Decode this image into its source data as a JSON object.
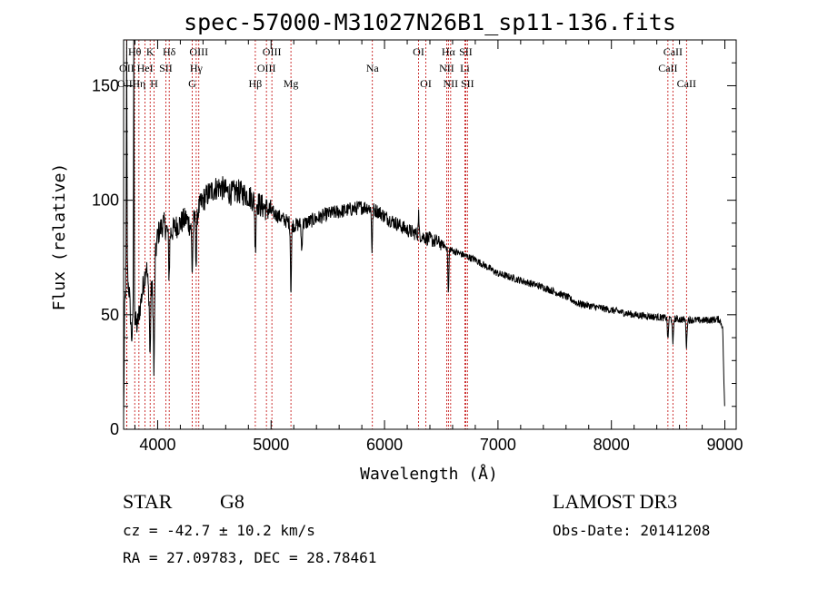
{
  "chart_data": {
    "type": "line",
    "title": "spec-57000-M31027N26B1_sp11-136.fits",
    "xlabel": "Wavelength (Å)",
    "ylabel": "Flux (relative)",
    "xlim": [
      3700,
      9100
    ],
    "ylim": [
      0,
      170
    ],
    "x_ticks": [
      4000,
      5000,
      6000,
      7000,
      8000,
      9000
    ],
    "y_ticks": [
      0,
      50,
      100,
      150
    ],
    "series": [
      {
        "name": "spectrum",
        "continuum": [
          [
            3700,
            5
          ],
          [
            3710,
            55
          ],
          [
            3730,
            68
          ],
          [
            3750,
            60
          ],
          [
            3770,
            40
          ],
          [
            3790,
            48
          ],
          [
            3820,
            45
          ],
          [
            3850,
            55
          ],
          [
            3880,
            65
          ],
          [
            3900,
            72
          ],
          [
            3920,
            60
          ],
          [
            3950,
            62
          ],
          [
            3968,
            48
          ],
          [
            3980,
            75
          ],
          [
            4000,
            85
          ],
          [
            4050,
            90
          ],
          [
            4100,
            85
          ],
          [
            4150,
            88
          ],
          [
            4200,
            90
          ],
          [
            4250,
            92
          ],
          [
            4300,
            88
          ],
          [
            4350,
            95
          ],
          [
            4400,
            100
          ],
          [
            4450,
            103
          ],
          [
            4500,
            105
          ],
          [
            4550,
            106
          ],
          [
            4600,
            104
          ],
          [
            4650,
            103
          ],
          [
            4700,
            104
          ],
          [
            4750,
            103
          ],
          [
            4800,
            102
          ],
          [
            4900,
            98
          ],
          [
            5000,
            95
          ],
          [
            5100,
            92
          ],
          [
            5200,
            89
          ],
          [
            5300,
            90
          ],
          [
            5400,
            92
          ],
          [
            5500,
            94
          ],
          [
            5600,
            95
          ],
          [
            5700,
            96
          ],
          [
            5800,
            97
          ],
          [
            5850,
            97
          ],
          [
            5900,
            96
          ],
          [
            5950,
            95
          ],
          [
            6000,
            93
          ],
          [
            6100,
            90
          ],
          [
            6200,
            87
          ],
          [
            6300,
            85
          ],
          [
            6400,
            83
          ],
          [
            6500,
            81
          ],
          [
            6600,
            78
          ],
          [
            6700,
            76
          ],
          [
            6800,
            74
          ],
          [
            6900,
            71
          ],
          [
            7000,
            68
          ],
          [
            7200,
            65
          ],
          [
            7400,
            62
          ],
          [
            7600,
            58
          ],
          [
            7700,
            55
          ],
          [
            7800,
            54
          ],
          [
            8000,
            52
          ],
          [
            8200,
            50
          ],
          [
            8400,
            49
          ],
          [
            8600,
            48
          ],
          [
            8800,
            47.5
          ],
          [
            8950,
            48
          ],
          [
            8980,
            45
          ],
          [
            9000,
            5
          ]
        ],
        "absorption_dips": [
          [
            3933,
            30
          ],
          [
            3968,
            25
          ],
          [
            4101,
            18
          ],
          [
            4305,
            20
          ],
          [
            4340,
            22
          ],
          [
            4861,
            22
          ],
          [
            5175,
            30
          ],
          [
            5270,
            12
          ],
          [
            5890,
            18
          ],
          [
            6563,
            20
          ],
          [
            8498,
            10
          ],
          [
            8542,
            12
          ],
          [
            8662,
            12
          ]
        ],
        "emission_spikes": [
          [
            3727,
            100
          ],
          [
            3790,
            120
          ],
          [
            6300,
            10
          ]
        ]
      }
    ],
    "spectral_lines": [
      {
        "label": "Hθ",
        "wavelength": 3798,
        "row": 0
      },
      {
        "label": "OII",
        "wavelength": 3727,
        "row": 1
      },
      {
        "label": "OIII",
        "wavelength": 3727,
        "row": 2
      },
      {
        "label": "K",
        "wavelength": 3934,
        "row": 0
      },
      {
        "label": "HeI",
        "wavelength": 3889,
        "row": 1
      },
      {
        "label": "Hη",
        "wavelength": 3835,
        "row": 2
      },
      {
        "label": "Hδ",
        "wavelength": 4102,
        "row": 0
      },
      {
        "label": "SII",
        "wavelength": 4072,
        "row": 1
      },
      {
        "label": "H",
        "wavelength": 3969,
        "row": 2
      },
      {
        "label": "OIII",
        "wavelength": 4363,
        "row": 0
      },
      {
        "label": "Hγ",
        "wavelength": 4340,
        "row": 1
      },
      {
        "label": "G",
        "wavelength": 4305,
        "row": 2
      },
      {
        "label": "OIII",
        "wavelength": 5007,
        "row": 0
      },
      {
        "label": "OIII",
        "wavelength": 4959,
        "row": 1
      },
      {
        "label": "Hβ",
        "wavelength": 4861,
        "row": 2
      },
      {
        "label": "Mg",
        "wavelength": 5175,
        "row": 2
      },
      {
        "label": "Na",
        "wavelength": 5893,
        "row": 1
      },
      {
        "label": "OI",
        "wavelength": 6300,
        "row": 0
      },
      {
        "label": "OI",
        "wavelength": 6364,
        "row": 2
      },
      {
        "label": "Hα",
        "wavelength": 6563,
        "row": 0
      },
      {
        "label": "SII",
        "wavelength": 6716,
        "row": 0
      },
      {
        "label": "NII",
        "wavelength": 6548,
        "row": 1
      },
      {
        "label": "Li",
        "wavelength": 6708,
        "row": 1
      },
      {
        "label": "NII",
        "wavelength": 6583,
        "row": 2
      },
      {
        "label": "SII",
        "wavelength": 6731,
        "row": 2
      },
      {
        "label": "CaII",
        "wavelength": 8542,
        "row": 0
      },
      {
        "label": "CaII",
        "wavelength": 8498,
        "row": 1
      },
      {
        "label": "CaII",
        "wavelength": 8662,
        "row": 2
      }
    ]
  },
  "info": {
    "object_class": "STAR",
    "subclass": "G8",
    "survey": "LAMOST DR3",
    "redshift": "cz = -42.7 ± 10.2 km/s",
    "obs_date": "Obs-Date: 20141208",
    "coords": "RA =  27.09783, DEC =  28.78461"
  }
}
